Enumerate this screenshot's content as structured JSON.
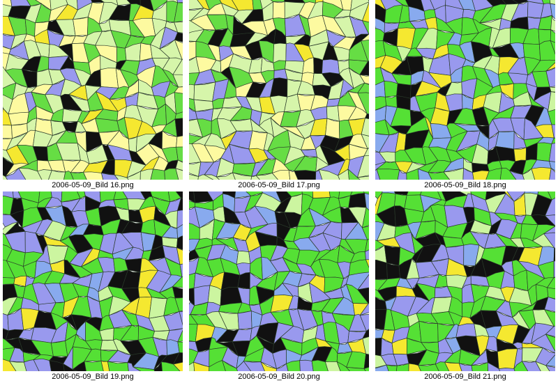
{
  "images": [
    {
      "caption": "2006-05-09_Bild 16.png"
    },
    {
      "caption": "2006-05-09_Bild 17.png"
    },
    {
      "caption": "2006-05-09_Bild 18.png"
    },
    {
      "caption": "2006-05-09_Bild 19.png"
    },
    {
      "caption": "2006-05-09_Bild 20.png"
    },
    {
      "caption": "2006-05-09_Bild 21.png"
    }
  ]
}
